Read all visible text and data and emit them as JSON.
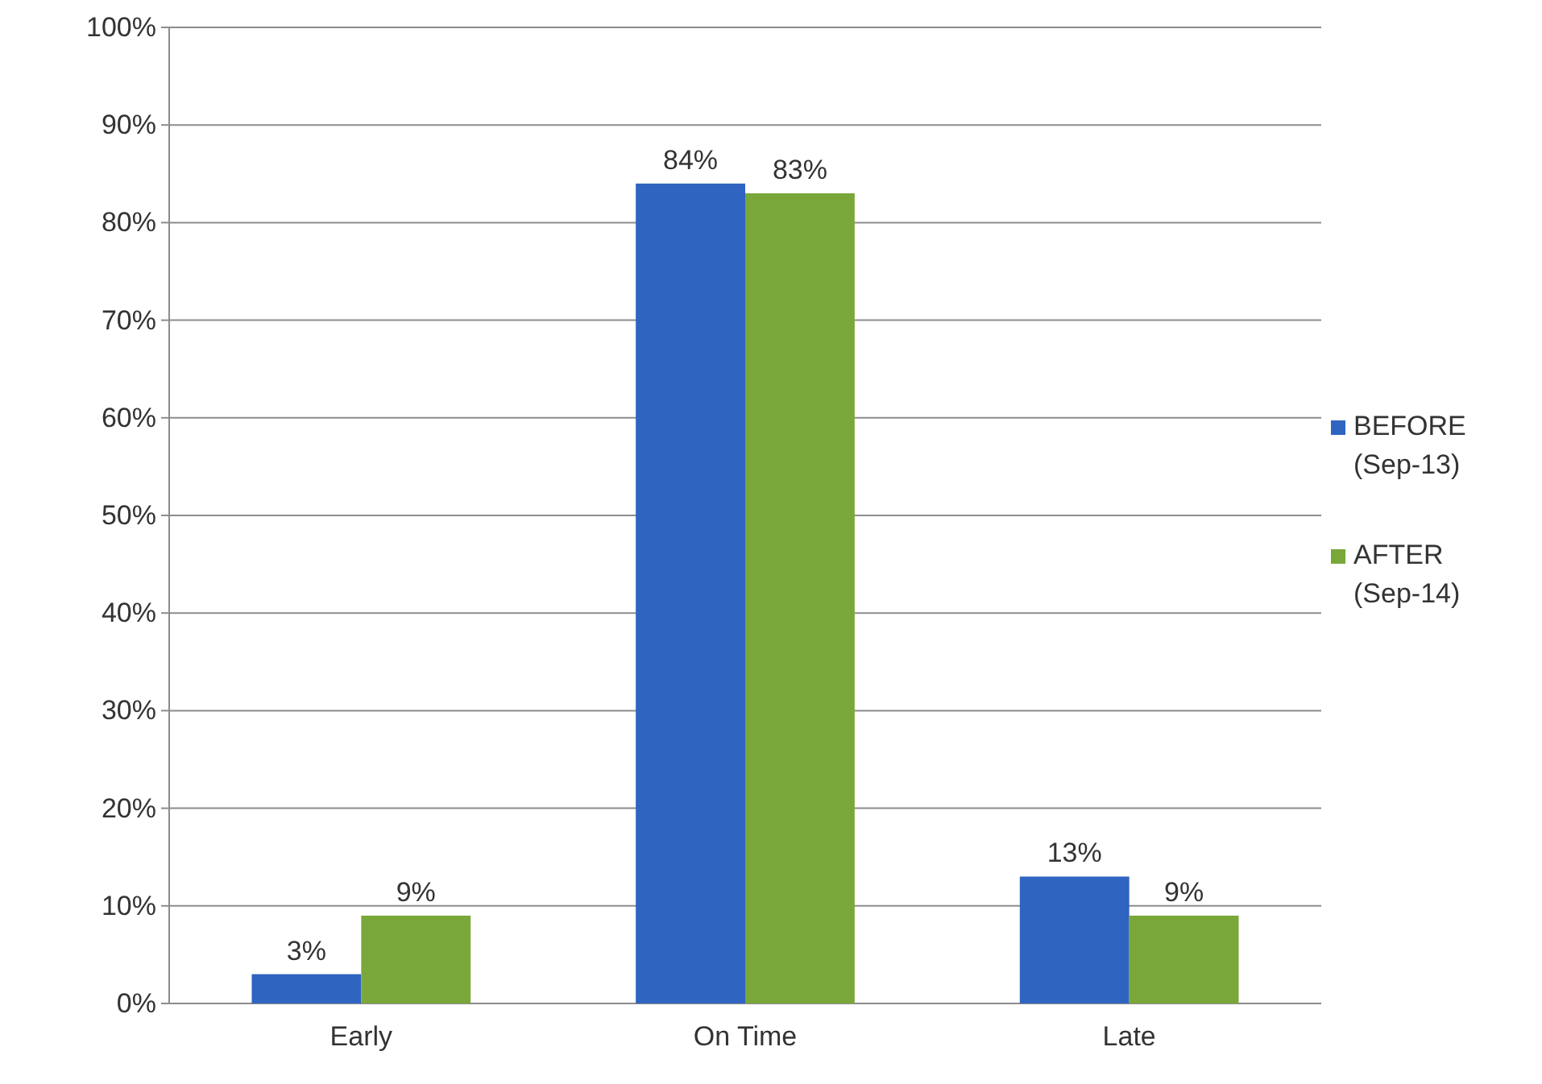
{
  "chart_data": {
    "type": "bar",
    "categories": [
      "Early",
      "On Time",
      "Late"
    ],
    "series": [
      {
        "name": "BEFORE (Sep-13)",
        "color": "#2f64c0",
        "values": [
          3,
          84,
          13
        ],
        "value_labels": [
          "3%",
          "84%",
          "13%"
        ]
      },
      {
        "name": "AFTER (Sep-14)",
        "color": "#7aa73a",
        "values": [
          9,
          83,
          9
        ],
        "value_labels": [
          "9%",
          "83%",
          "9%"
        ]
      }
    ],
    "ylim": [
      0,
      100
    ],
    "yticks": [
      {
        "value": 0,
        "label": "0%"
      },
      {
        "value": 10,
        "label": "10%"
      },
      {
        "value": 20,
        "label": "20%"
      },
      {
        "value": 30,
        "label": "30%"
      },
      {
        "value": 40,
        "label": "40%"
      },
      {
        "value": 50,
        "label": "50%"
      },
      {
        "value": 60,
        "label": "60%"
      },
      {
        "value": 70,
        "label": "70%"
      },
      {
        "value": 80,
        "label": "80%"
      },
      {
        "value": 90,
        "label": "90%"
      },
      {
        "value": 100,
        "label": "100%"
      }
    ],
    "grid": "y",
    "legend": "right"
  }
}
